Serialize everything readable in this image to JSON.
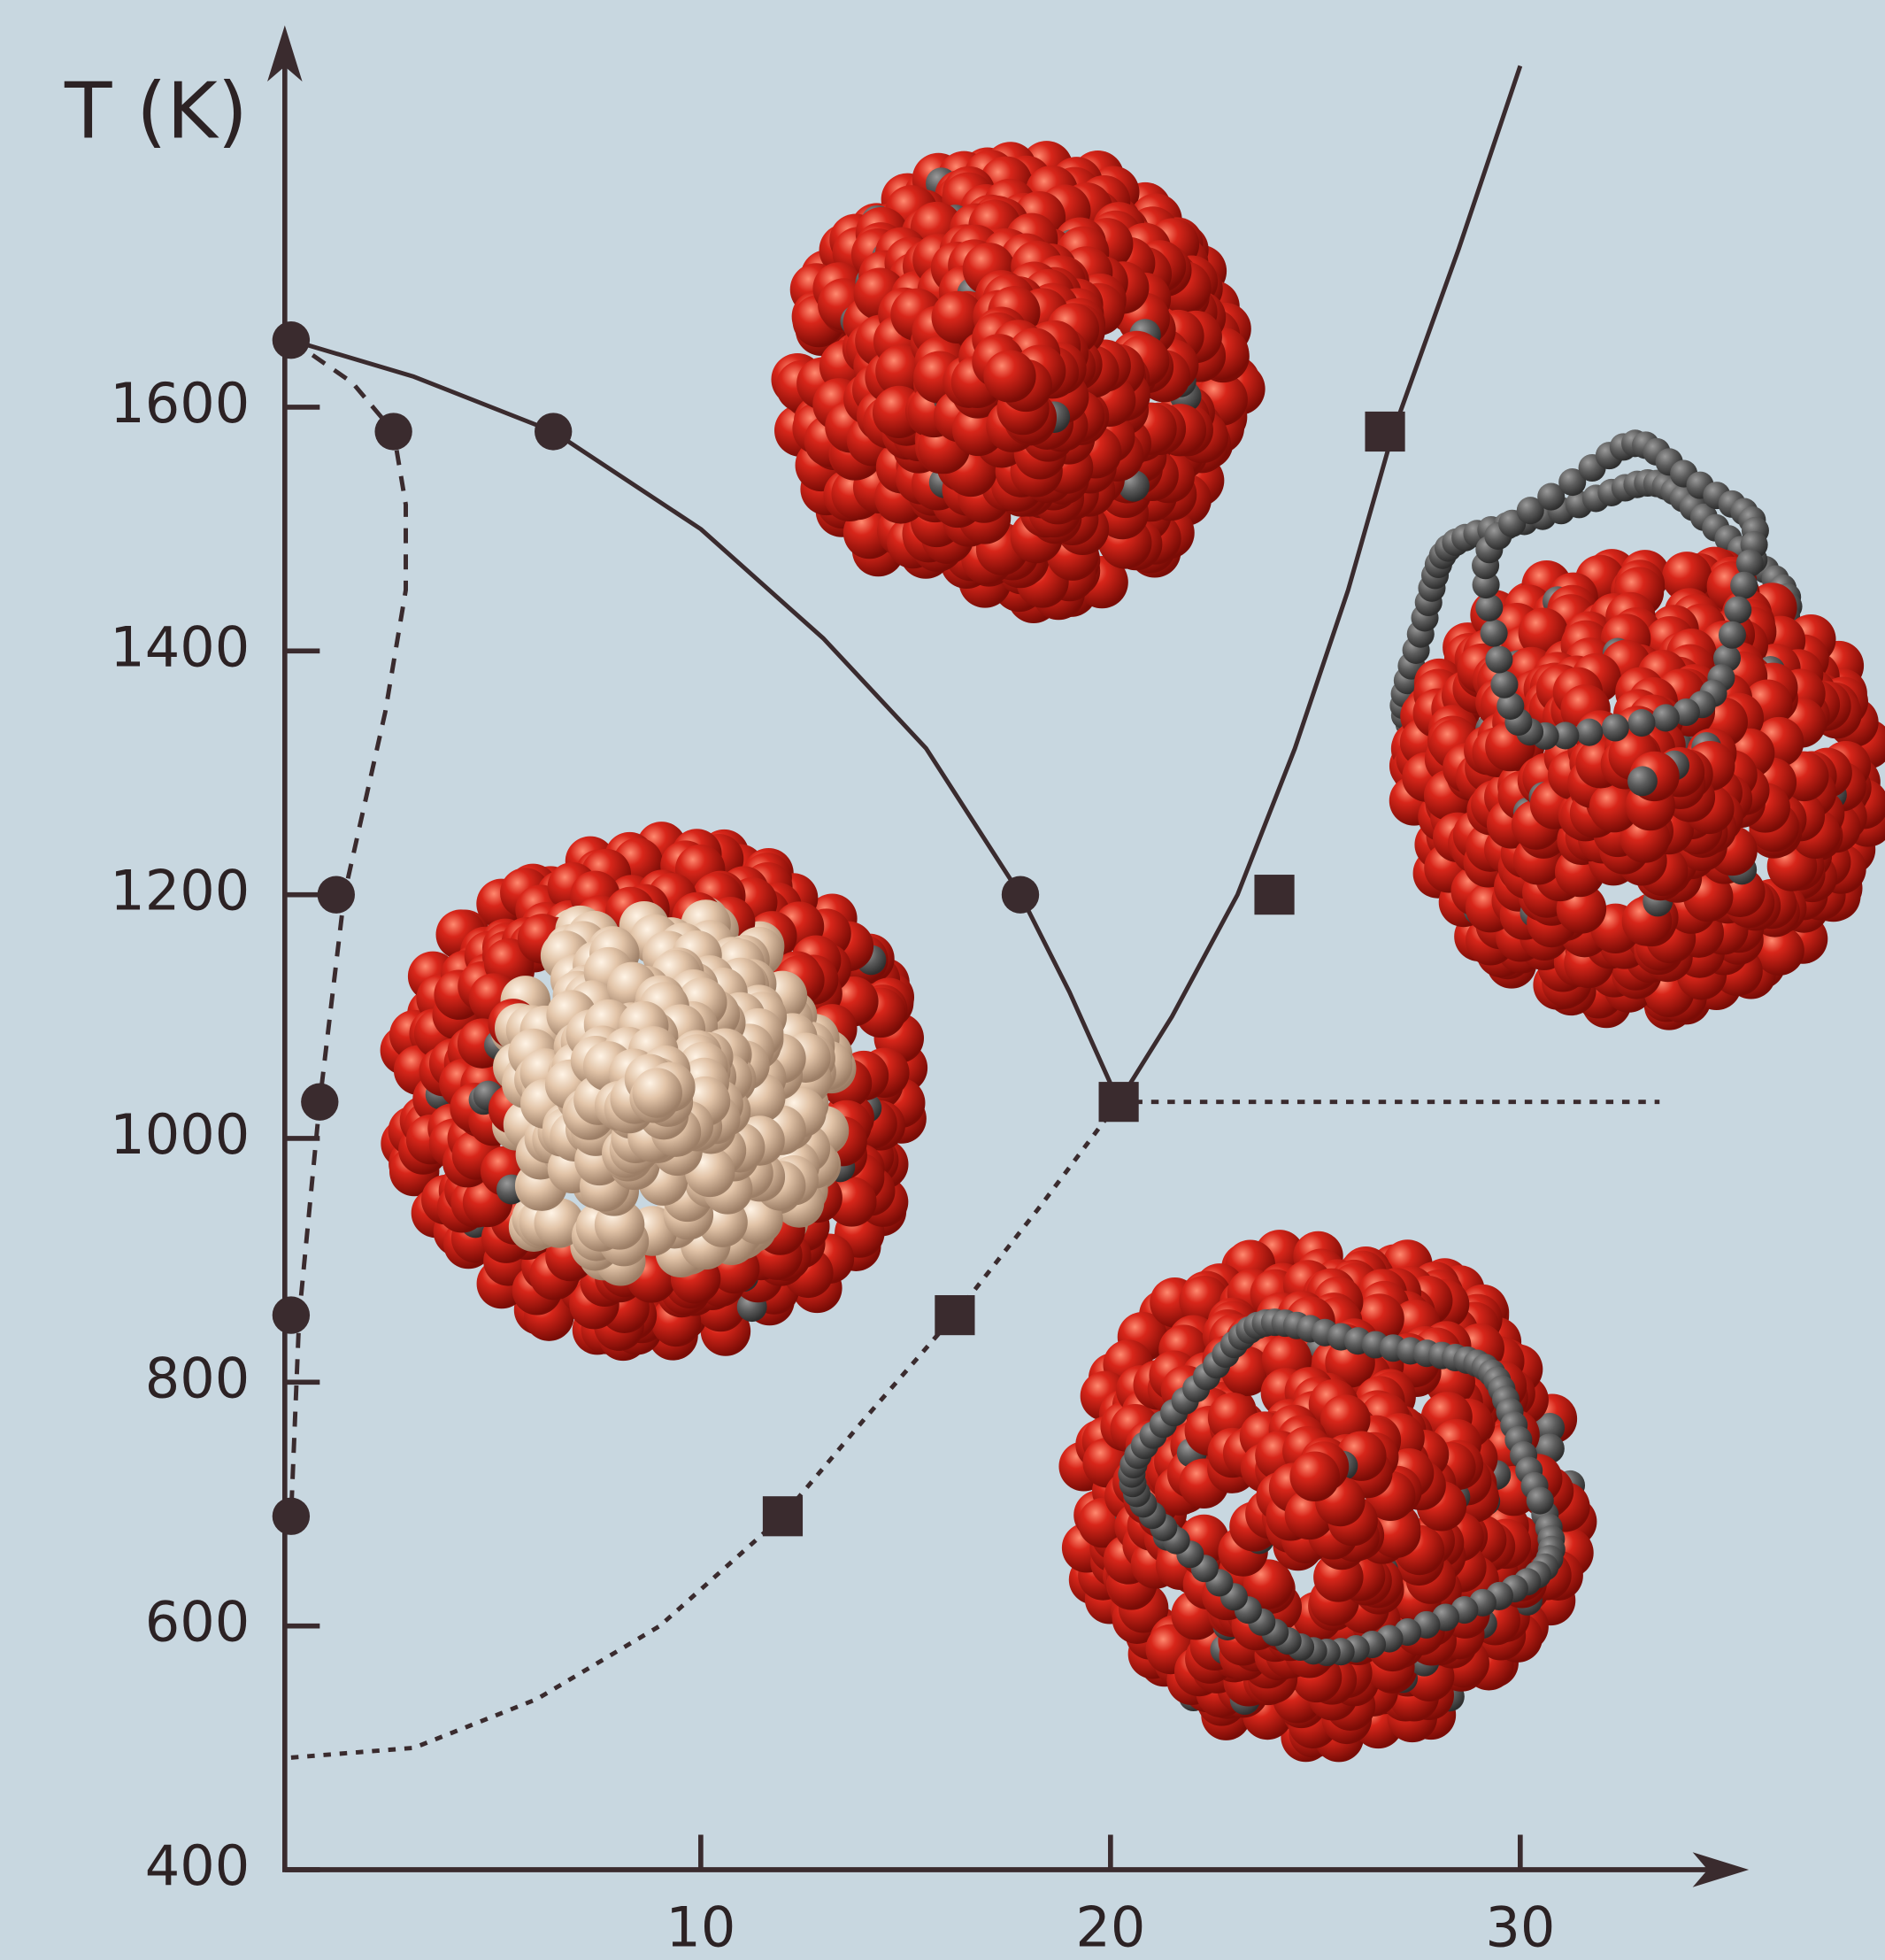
{
  "chart_data": {
    "type": "line",
    "y_label": "T (K)",
    "xlim": [
      0,
      35
    ],
    "ylim": [
      400,
      1900
    ],
    "xticks": [
      10,
      20,
      30
    ],
    "yticks": [
      400,
      600,
      800,
      1000,
      1200,
      1400,
      1600
    ],
    "color": "#3a2b2e",
    "lines": [
      {
        "style": "solid",
        "x": [
          0,
          3,
          6.4,
          10,
          13,
          15.5,
          17.8,
          19,
          20.2,
          21.5,
          23.1,
          24.5,
          25.8,
          26.9,
          28.5,
          30
        ],
        "y": [
          1655,
          1625,
          1580,
          1500,
          1410,
          1320,
          1200,
          1120,
          1030,
          1100,
          1200,
          1320,
          1450,
          1580,
          1730,
          1880
        ]
      },
      {
        "style": "dashed",
        "x": [
          0,
          1.5,
          2.5,
          2.8,
          2.8,
          2.3,
          1.3,
          0.7,
          0.2,
          0
        ],
        "y": [
          1655,
          1620,
          1580,
          1520,
          1450,
          1350,
          1200,
          1030,
          855,
          690
        ]
      },
      {
        "style": "dotted",
        "x": [
          0,
          3,
          6,
          9,
          12,
          14,
          16.2,
          18.3,
          20.2
        ],
        "y": [
          492,
          500,
          540,
          600,
          690,
          770,
          855,
          945,
          1030
        ]
      },
      {
        "style": "dotted",
        "x": [
          20.2,
          33.4
        ],
        "y": [
          1030,
          1030
        ]
      }
    ],
    "points": [
      {
        "marker": "circle",
        "x": [
          0,
          6.4,
          17.8,
          2.5,
          1.1,
          0.7,
          0,
          0
        ],
        "y": [
          1655,
          1580,
          1200,
          1580,
          1200,
          1030,
          855,
          690
        ]
      },
      {
        "marker": "square",
        "x": [
          26.7,
          24.0,
          20.2,
          16.2,
          12.0
        ],
        "y": [
          1580,
          1200,
          1030,
          855,
          690
        ]
      }
    ]
  }
}
